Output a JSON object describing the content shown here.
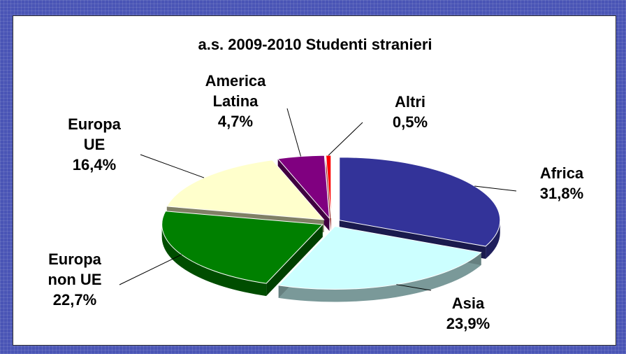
{
  "chart_data": {
    "type": "pie",
    "title": "a.s. 2009-2010 Studenti stranieri",
    "slices": [
      {
        "name": "Africa",
        "value": 31.8,
        "label_lines": [
          "Africa",
          "31,8%"
        ],
        "color": "#333399"
      },
      {
        "name": "Asia",
        "value": 23.9,
        "label_lines": [
          "Asia",
          "23,9%"
        ],
        "color": "#ccffff"
      },
      {
        "name": "Europa non UE",
        "value": 22.7,
        "label_lines": [
          "Europa",
          "non UE",
          "22,7%"
        ],
        "color": "#008000"
      },
      {
        "name": "Europa UE",
        "value": 16.4,
        "label_lines": [
          "Europa",
          "UE",
          "16,4%"
        ],
        "color": "#ffffcc"
      },
      {
        "name": "America Latina",
        "value": 4.7,
        "label_lines": [
          "America",
          "Latina",
          "4,7%"
        ],
        "color": "#800080"
      },
      {
        "name": "Altri",
        "value": 0.5,
        "label_lines": [
          "Altri",
          "0,5%"
        ],
        "color": "#ff0000"
      }
    ],
    "exploded": true,
    "three_d": true
  }
}
